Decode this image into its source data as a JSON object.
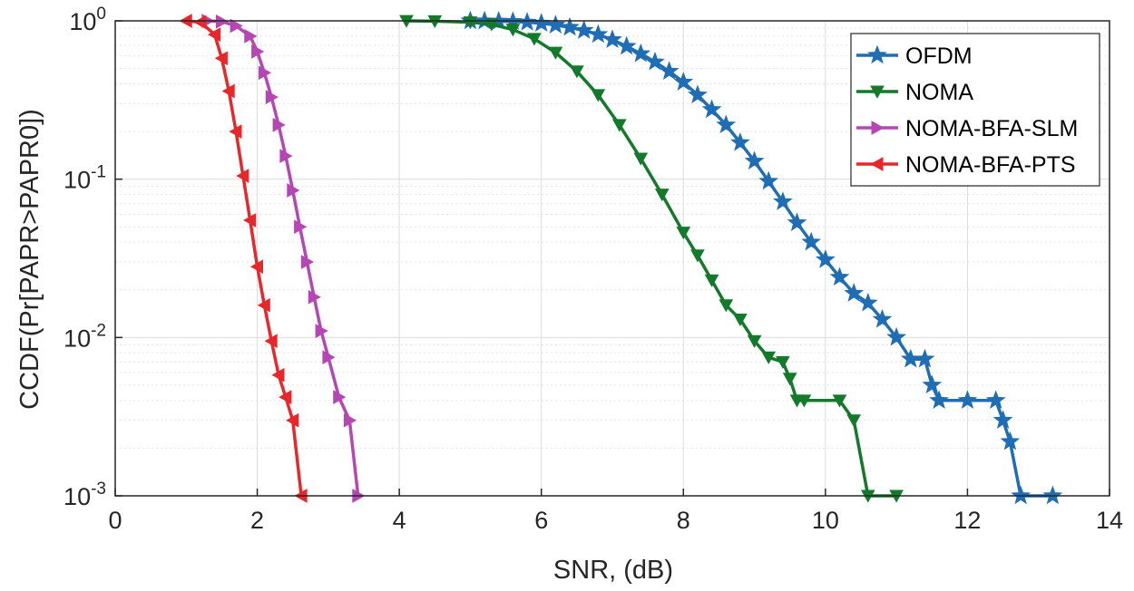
{
  "chart_data": {
    "type": "line",
    "title": "",
    "xlabel": "SNR, (dB)",
    "ylabel": "CCDF(Pr[PAPR>PAPR0])",
    "xlim": [
      0,
      14
    ],
    "ylim": [
      0.001,
      1
    ],
    "yscale": "log",
    "grid": true,
    "legend_position": "top-right",
    "xticks": [
      "0",
      "2",
      "4",
      "6",
      "8",
      "10",
      "12",
      "14"
    ],
    "yticks": [
      {
        "base": "10",
        "exp": "-3",
        "value": 0.001
      },
      {
        "base": "10",
        "exp": "-2",
        "value": 0.01
      },
      {
        "base": "10",
        "exp": "-1",
        "value": 0.1
      },
      {
        "base": "10",
        "exp": "0",
        "value": 1
      }
    ],
    "series": [
      {
        "name": "OFDM",
        "color": "#1f6db5",
        "marker": "star",
        "x": [
          5.0,
          5.2,
          5.4,
          5.6,
          5.8,
          6.0,
          6.2,
          6.4,
          6.6,
          6.8,
          7.0,
          7.2,
          7.4,
          7.6,
          7.8,
          8.0,
          8.2,
          8.4,
          8.6,
          8.8,
          9.0,
          9.2,
          9.4,
          9.6,
          9.8,
          10.0,
          10.2,
          10.4,
          10.6,
          10.8,
          11.0,
          11.2,
          11.4,
          11.5,
          11.6,
          12.0,
          12.4,
          12.5,
          12.6,
          12.75,
          13.2
        ],
        "y": [
          1.0,
          0.998,
          0.995,
          0.99,
          0.98,
          0.965,
          0.94,
          0.91,
          0.87,
          0.82,
          0.76,
          0.69,
          0.62,
          0.55,
          0.48,
          0.41,
          0.34,
          0.275,
          0.22,
          0.17,
          0.13,
          0.097,
          0.072,
          0.053,
          0.04,
          0.031,
          0.024,
          0.019,
          0.0165,
          0.013,
          0.01,
          0.0073,
          0.0073,
          0.005,
          0.004,
          0.004,
          0.004,
          0.003,
          0.0022,
          0.001,
          0.001
        ]
      },
      {
        "name": "NOMA",
        "color": "#127a2a",
        "marker": "triangle-down",
        "x": [
          4.1,
          4.5,
          5.0,
          5.3,
          5.6,
          5.9,
          6.2,
          6.5,
          6.8,
          7.1,
          7.4,
          7.7,
          8.0,
          8.2,
          8.4,
          8.6,
          8.8,
          9.0,
          9.2,
          9.4,
          9.5,
          9.6,
          9.7,
          10.2,
          10.4,
          10.6,
          11.0
        ],
        "y": [
          1.0,
          0.995,
          0.98,
          0.95,
          0.88,
          0.77,
          0.63,
          0.48,
          0.34,
          0.22,
          0.135,
          0.08,
          0.046,
          0.033,
          0.023,
          0.016,
          0.013,
          0.0095,
          0.0075,
          0.007,
          0.0055,
          0.004,
          0.004,
          0.004,
          0.003,
          0.001,
          0.001
        ]
      },
      {
        "name": "NOMA-BFA-SLM",
        "color": "#b547b5",
        "marker": "triangle-right",
        "x": [
          1.3,
          1.5,
          1.7,
          1.9,
          2.0,
          2.1,
          2.2,
          2.3,
          2.4,
          2.5,
          2.6,
          2.7,
          2.8,
          2.9,
          3.0,
          3.15,
          3.3,
          3.42
        ],
        "y": [
          1.0,
          0.99,
          0.93,
          0.8,
          0.64,
          0.47,
          0.33,
          0.22,
          0.14,
          0.085,
          0.05,
          0.03,
          0.018,
          0.011,
          0.0075,
          0.0042,
          0.003,
          0.001
        ]
      },
      {
        "name": "NOMA-BFA-PTS",
        "color": "#e8272b",
        "marker": "triangle-left",
        "x": [
          1.0,
          1.2,
          1.4,
          1.5,
          1.6,
          1.7,
          1.8,
          1.9,
          2.0,
          2.1,
          2.2,
          2.3,
          2.4,
          2.5,
          2.62
        ],
        "y": [
          1.0,
          0.98,
          0.82,
          0.58,
          0.36,
          0.2,
          0.105,
          0.055,
          0.028,
          0.016,
          0.0095,
          0.0058,
          0.0042,
          0.003,
          0.001
        ]
      }
    ]
  }
}
